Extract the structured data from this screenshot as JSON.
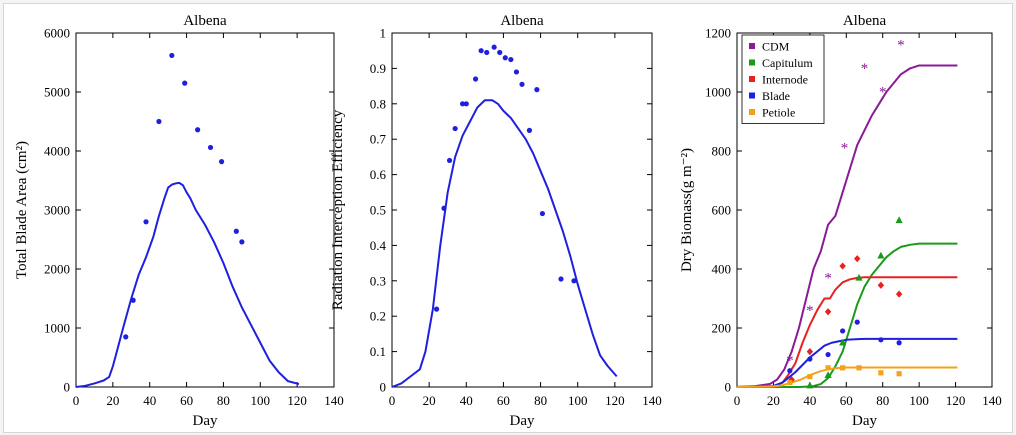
{
  "colors": {
    "blue": "#1f1fe0",
    "purple": "#8a1a96",
    "green": "#1a9a1a",
    "red": "#e82020",
    "orange": "#f4a21a"
  },
  "chart_data": [
    {
      "type": "line",
      "title": "Albena",
      "xlabel": "Day",
      "ylabel": "Total Blade Area (cm²)",
      "xlim": [
        0,
        140
      ],
      "ylim": [
        0,
        6000
      ],
      "xticks": [
        0,
        20,
        40,
        60,
        80,
        100,
        120,
        140
      ],
      "yticks": [
        0,
        1000,
        2000,
        3000,
        4000,
        5000,
        6000
      ],
      "grid": false,
      "legend": "none",
      "series": [
        {
          "kind": "line",
          "color_key": "blue",
          "x": [
            0,
            5,
            10,
            15,
            18,
            20,
            23,
            26,
            30,
            34,
            38,
            42,
            45,
            48,
            50,
            52,
            54,
            56,
            58,
            60,
            62,
            65,
            70,
            75,
            80,
            85,
            90,
            95,
            100,
            105,
            110,
            115,
            121
          ],
          "y": [
            0,
            20,
            60,
            110,
            170,
            350,
            700,
            1050,
            1500,
            1900,
            2200,
            2550,
            2900,
            3200,
            3380,
            3430,
            3450,
            3460,
            3420,
            3300,
            3200,
            3000,
            2750,
            2450,
            2100,
            1700,
            1350,
            1050,
            750,
            450,
            250,
            100,
            50
          ]
        },
        {
          "kind": "scatter",
          "color_key": "blue",
          "x": [
            27,
            31,
            38,
            45,
            52,
            59,
            66,
            73,
            79,
            87,
            90
          ],
          "y": [
            850,
            1470,
            2800,
            4500,
            5620,
            5150,
            4360,
            4060,
            3820,
            2640,
            2460
          ]
        }
      ]
    },
    {
      "type": "line",
      "title": "Albena",
      "xlabel": "Day",
      "ylabel": "Radiation Interception Efficiency",
      "xlim": [
        0,
        140
      ],
      "ylim": [
        0,
        1
      ],
      "xticks": [
        0,
        20,
        40,
        60,
        80,
        100,
        120,
        140
      ],
      "yticks": [
        0,
        0.1,
        0.2,
        0.3,
        0.4,
        0.5,
        0.6,
        0.7,
        0.8,
        0.9,
        1
      ],
      "grid": false,
      "legend": "none",
      "series": [
        {
          "kind": "line",
          "color_key": "blue",
          "x": [
            0,
            5,
            10,
            15,
            18,
            22,
            26,
            30,
            34,
            38,
            42,
            46,
            50,
            54,
            57,
            60,
            64,
            68,
            72,
            76,
            80,
            84,
            88,
            92,
            96,
            100,
            104,
            108,
            112,
            116,
            121
          ],
          "y": [
            0,
            0.01,
            0.03,
            0.05,
            0.1,
            0.22,
            0.4,
            0.55,
            0.65,
            0.71,
            0.75,
            0.79,
            0.81,
            0.81,
            0.8,
            0.78,
            0.76,
            0.73,
            0.7,
            0.66,
            0.61,
            0.56,
            0.5,
            0.44,
            0.37,
            0.29,
            0.22,
            0.15,
            0.09,
            0.06,
            0.03
          ]
        },
        {
          "kind": "scatter",
          "color_key": "blue",
          "x": [
            24,
            28,
            31,
            34,
            38,
            40,
            45,
            48,
            51,
            55,
            58,
            61,
            64,
            67,
            70,
            74,
            78,
            81,
            91,
            98
          ],
          "y": [
            0.22,
            0.505,
            0.64,
            0.73,
            0.8,
            0.8,
            0.87,
            0.95,
            0.945,
            0.96,
            0.945,
            0.93,
            0.925,
            0.89,
            0.855,
            0.725,
            0.84,
            0.49,
            0.305,
            0.3
          ]
        }
      ]
    },
    {
      "type": "line",
      "title": "Albena",
      "xlabel": "Day",
      "ylabel": "Dry Biomass(g m⁻²)",
      "xlim": [
        0,
        140
      ],
      "ylim": [
        0,
        1200
      ],
      "xticks": [
        0,
        20,
        40,
        60,
        80,
        100,
        120,
        140
      ],
      "yticks": [
        0,
        200,
        400,
        600,
        800,
        1000,
        1200
      ],
      "grid": false,
      "legend": "top-left",
      "series": [
        {
          "name": "CDM",
          "marker": "*",
          "color_key": "purple",
          "line_x": [
            0,
            10,
            18,
            22,
            26,
            30,
            34,
            38,
            42,
            46,
            50,
            54,
            58,
            62,
            66,
            70,
            74,
            78,
            82,
            86,
            90,
            95,
            100,
            110,
            121
          ],
          "line_y": [
            0,
            3,
            10,
            25,
            60,
            120,
            200,
            300,
            400,
            460,
            550,
            580,
            660,
            740,
            820,
            870,
            920,
            960,
            1000,
            1030,
            1060,
            1080,
            1090,
            1090,
            1090
          ],
          "point_x": [
            29,
            40,
            50,
            59,
            70,
            80,
            90
          ],
          "point_y": [
            90,
            260,
            370,
            810,
            1080,
            1000,
            1160
          ]
        },
        {
          "name": "Capitulum",
          "marker": "triangle",
          "color_key": "green",
          "line_x": [
            0,
            35,
            42,
            46,
            50,
            54,
            58,
            62,
            66,
            70,
            74,
            78,
            82,
            86,
            90,
            95,
            100,
            110,
            121
          ],
          "line_y": [
            0,
            0,
            3,
            10,
            30,
            70,
            120,
            200,
            280,
            340,
            380,
            410,
            440,
            460,
            475,
            482,
            486,
            486,
            486
          ],
          "point_x": [
            40,
            50,
            58,
            67,
            79,
            89
          ],
          "point_y": [
            5,
            40,
            150,
            370,
            445,
            565
          ]
        },
        {
          "name": "Internode",
          "marker": "diamond",
          "color_key": "red",
          "line_x": [
            0,
            20,
            25,
            28,
            32,
            36,
            40,
            44,
            48,
            51,
            54,
            58,
            62,
            66,
            70,
            80,
            90,
            100,
            121
          ],
          "line_y": [
            0,
            3,
            15,
            40,
            80,
            150,
            210,
            260,
            300,
            300,
            330,
            355,
            365,
            370,
            372,
            372,
            372,
            372,
            372
          ],
          "point_x": [
            30,
            40,
            50,
            58,
            66,
            79,
            89
          ],
          "point_y": [
            25,
            120,
            255,
            410,
            435,
            345,
            315
          ]
        },
        {
          "name": "Blade",
          "marker": "circle",
          "color_key": "blue",
          "line_x": [
            0,
            20,
            25,
            28,
            32,
            36,
            40,
            44,
            48,
            52,
            56,
            60,
            65,
            70,
            80,
            90,
            100,
            121
          ],
          "line_y": [
            0,
            3,
            15,
            30,
            50,
            75,
            100,
            120,
            140,
            150,
            155,
            160,
            162,
            163,
            163,
            163,
            163,
            163
          ],
          "point_x": [
            29,
            40,
            50,
            58,
            66,
            79,
            89
          ],
          "point_y": [
            55,
            95,
            110,
            190,
            220,
            160,
            150
          ]
        },
        {
          "name": "Petiole",
          "marker": "square",
          "color_key": "orange",
          "line_x": [
            0,
            20,
            25,
            30,
            35,
            40,
            45,
            50,
            55,
            60,
            70,
            80,
            90,
            100,
            121
          ],
          "line_y": [
            0,
            2,
            6,
            15,
            25,
            40,
            52,
            60,
            64,
            66,
            66,
            66,
            66,
            66,
            66
          ],
          "point_x": [
            29,
            40,
            50,
            58,
            67,
            79,
            89
          ],
          "point_y": [
            15,
            35,
            65,
            65,
            65,
            48,
            45
          ]
        }
      ]
    }
  ]
}
